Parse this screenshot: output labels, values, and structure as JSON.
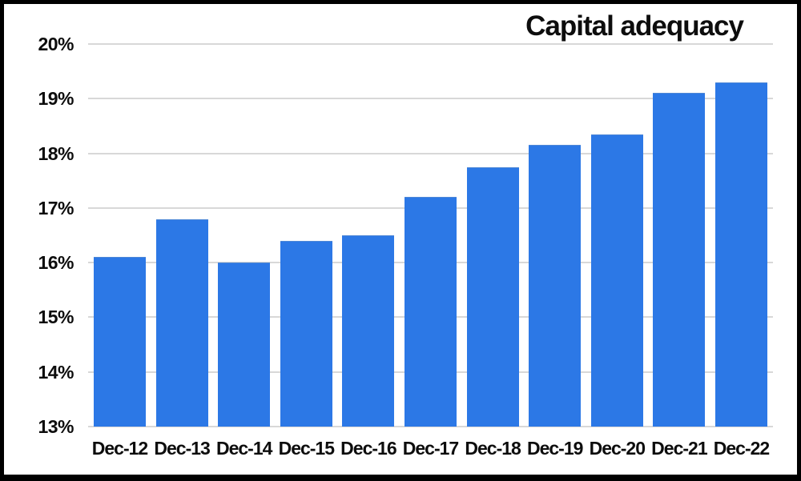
{
  "chart_data": {
    "type": "bar",
    "title": "Capital adequacy",
    "categories": [
      "Dec-12",
      "Dec-13",
      "Dec-14",
      "Dec-15",
      "Dec-16",
      "Dec-17",
      "Dec-18",
      "Dec-19",
      "Dec-20",
      "Dec-21",
      "Dec-22"
    ],
    "values": [
      16.1,
      16.8,
      16.0,
      16.4,
      16.5,
      17.2,
      17.75,
      18.15,
      18.35,
      19.1,
      19.3
    ],
    "value_unit": "%",
    "xlabel": "",
    "ylabel": "",
    "ylim": [
      13,
      20
    ],
    "y_ticks": [
      20,
      19,
      18,
      17,
      16,
      15,
      14,
      13
    ],
    "y_tick_labels": [
      "20%",
      "19%",
      "18%",
      "17%",
      "16%",
      "15%",
      "14%",
      "13%"
    ],
    "grid": "horizontal gridlines only",
    "legend_position": "none",
    "title_position": "top-right",
    "colors": {
      "bar": "#2c78e6",
      "gridline": "#d8d8d8",
      "text": "#0d0d0d",
      "frame": "#000000",
      "background": "#ffffff"
    }
  }
}
